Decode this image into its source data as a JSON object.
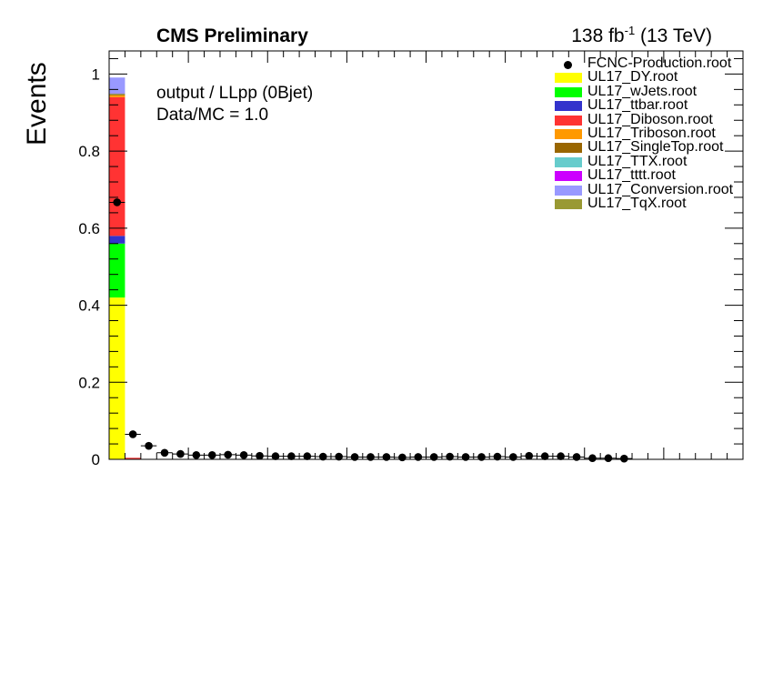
{
  "header": {
    "title": "CMS Preliminary",
    "lumi_value": "138 fb",
    "lumi_sup": "-1",
    "lumi_energy": " (13 TeV)"
  },
  "notes": {
    "line1": "output / LLpp (0Bjet)",
    "line2": "Data/MC = 1.0"
  },
  "chart_data": {
    "type": "bar",
    "stacked": true,
    "ylabel": "Events",
    "xlabel": "",
    "ylim": [
      0,
      1.06
    ],
    "yticks": [
      0,
      0.2,
      0.4,
      0.6,
      0.8,
      1
    ],
    "ytick_labels": [
      "0",
      "0.2",
      "0.4",
      "0.6",
      "0.8",
      "1"
    ],
    "n_bins": 40,
    "x_tick_labels_shown": false,
    "grid": false,
    "legend_position": "top-right",
    "stack": [
      {
        "name": "UL17_DY.root",
        "color": "#ffff00",
        "bins": {
          "0": 0.42
        }
      },
      {
        "name": "UL17_wJets.root",
        "color": "#00ff00",
        "bins": {
          "0": 0.14
        }
      },
      {
        "name": "UL17_ttbar.root",
        "color": "#3333cc",
        "bins": {
          "0": 0.02
        }
      },
      {
        "name": "UL17_Diboson.root",
        "color": "#ff3333",
        "bins": {
          "0": 0.36,
          "1": 0.004
        }
      },
      {
        "name": "UL17_Triboson.root",
        "color": "#ff9900",
        "bins": {
          "0": 0.005
        }
      },
      {
        "name": "UL17_SingleTop.root",
        "color": "#996600",
        "bins": {
          "0": 0.003
        }
      },
      {
        "name": "UL17_TTX.root",
        "color": "#66cccc",
        "bins": {
          "0": 0.002
        }
      },
      {
        "name": "UL17_tttt.root",
        "color": "#cc00ff",
        "bins": {
          "0": 0.001
        }
      },
      {
        "name": "UL17_Conversion.root",
        "color": "#9999ff",
        "bins": {
          "0": 0.04
        }
      },
      {
        "name": "UL17_TqX.root",
        "color": "#999933",
        "bins": {
          "0": 0.0
        }
      }
    ],
    "data": {
      "name": "FCNC-Production.root",
      "values": [
        0.667,
        0.065,
        0.035,
        0.017,
        0.014,
        0.011,
        0.011,
        0.012,
        0.011,
        0.009,
        0.008,
        0.008,
        0.008,
        0.007,
        0.007,
        0.006,
        0.006,
        0.006,
        0.005,
        0.006,
        0.006,
        0.007,
        0.006,
        0.006,
        0.007,
        0.006,
        0.009,
        0.008,
        0.008,
        0.006,
        0.003,
        0.003,
        0.002
      ]
    }
  }
}
